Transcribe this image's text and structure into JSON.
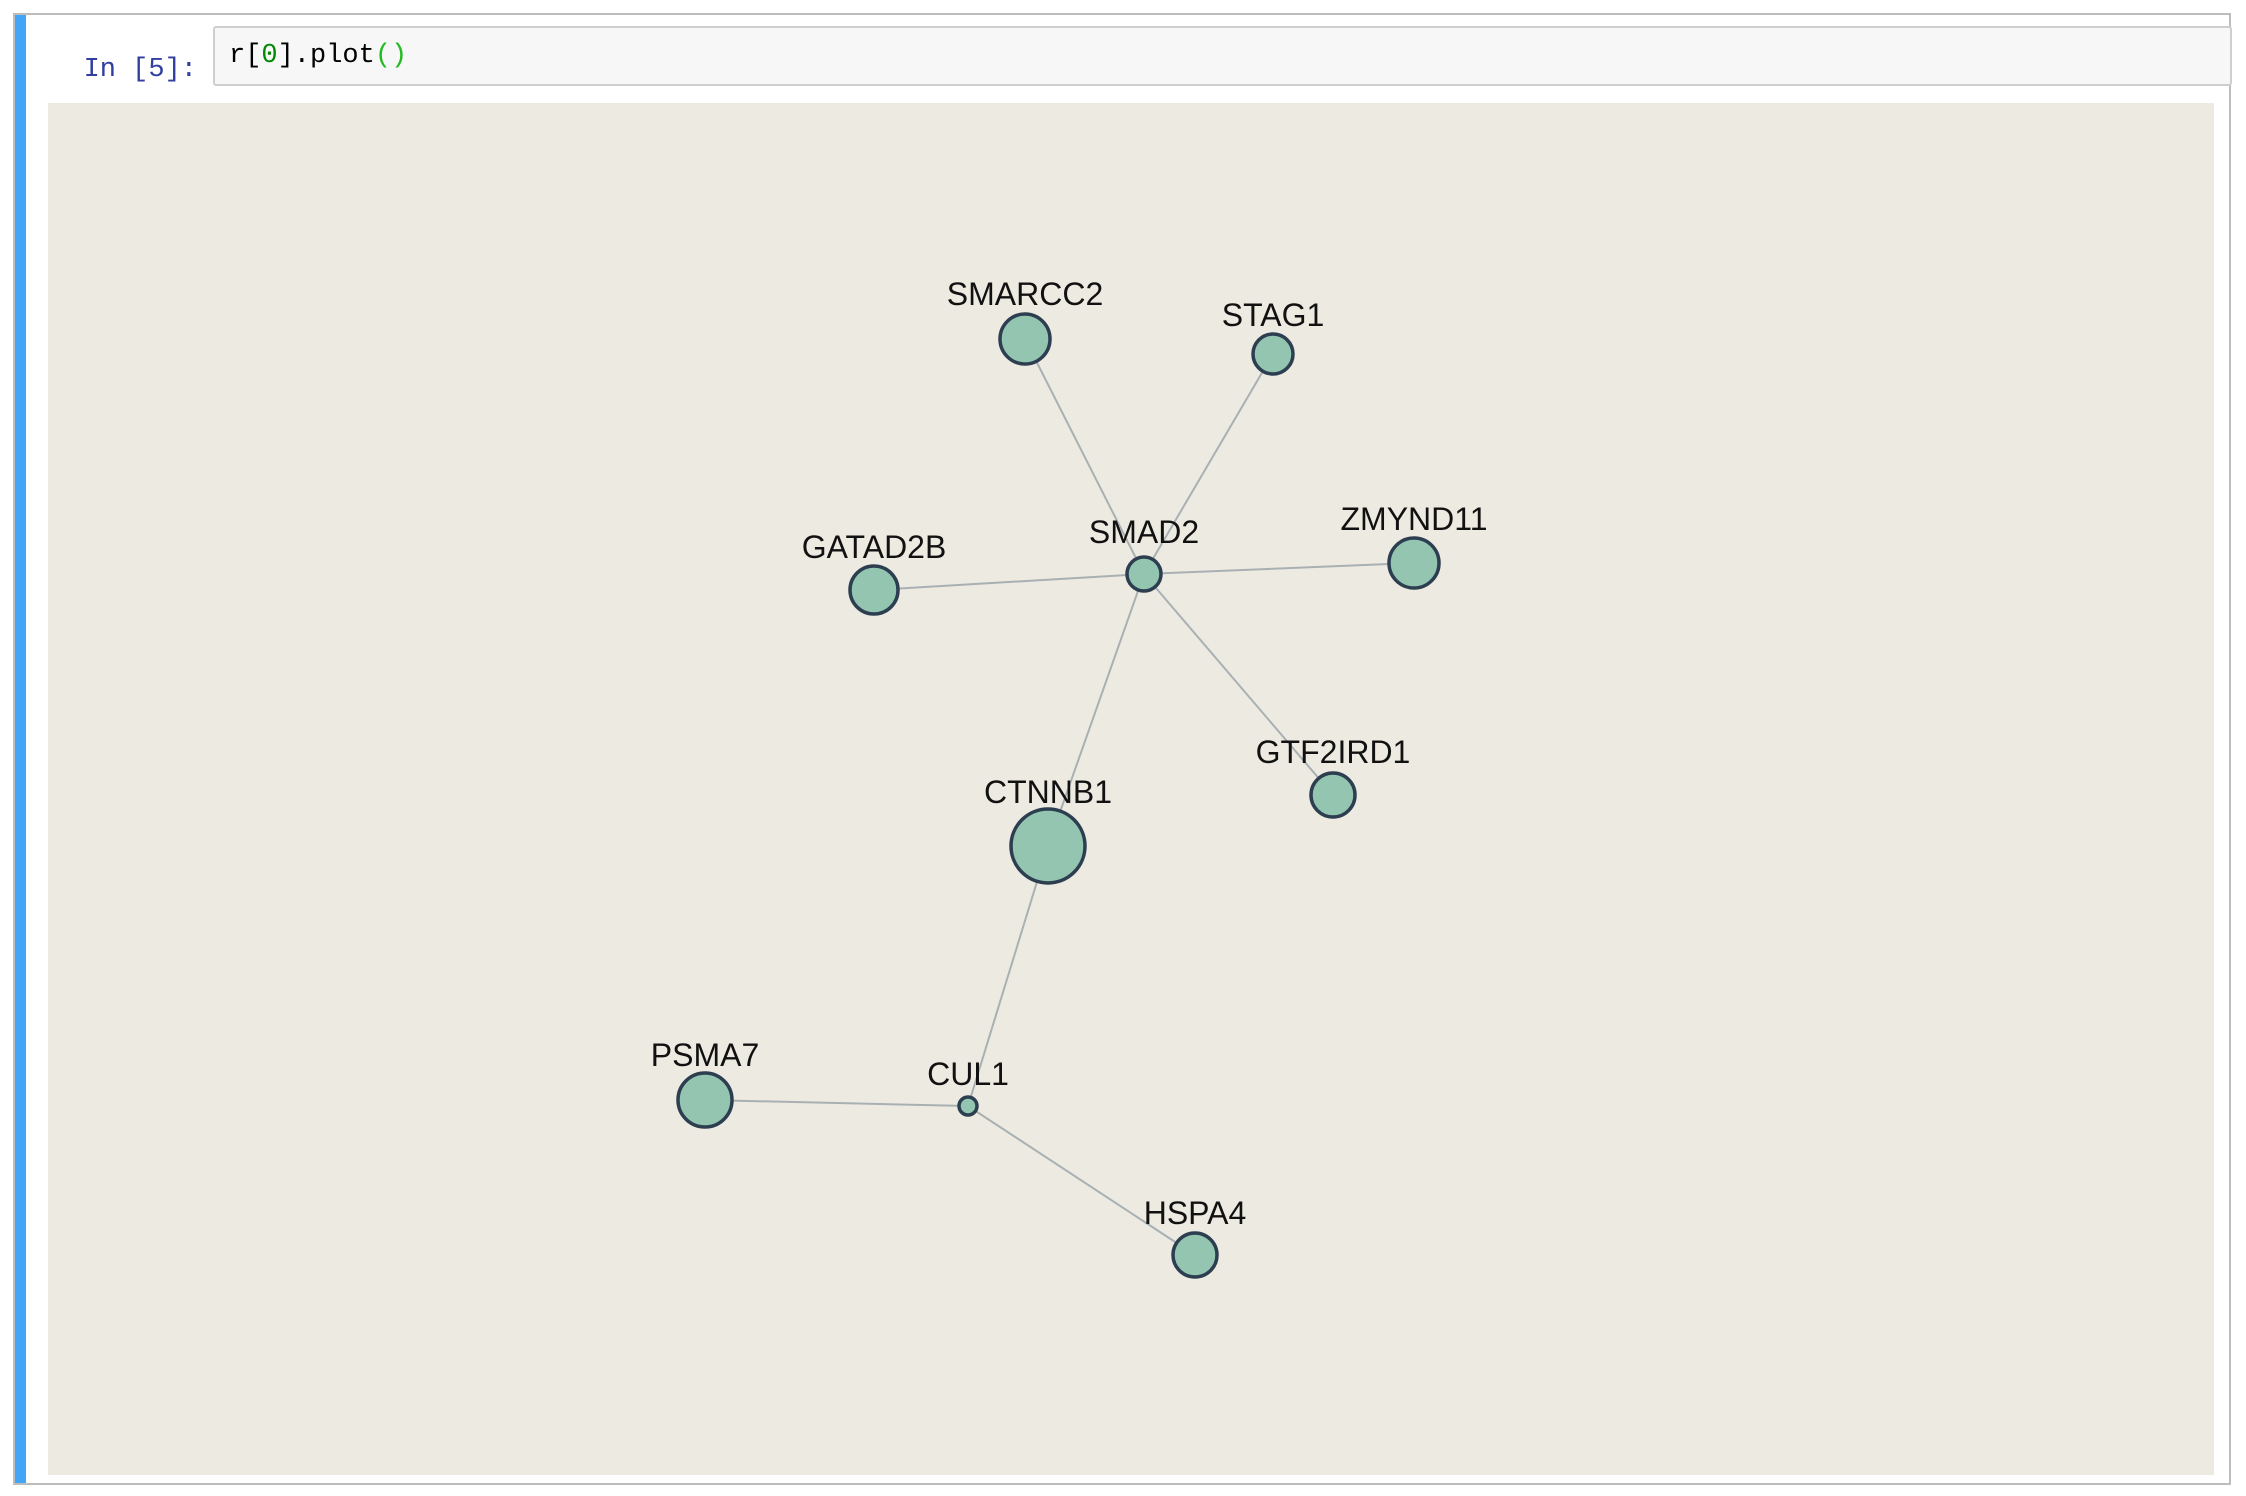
{
  "cell": {
    "prompt": "In [5]:",
    "code": {
      "before_num": "r[",
      "num": "0",
      "after_num": "].plot",
      "paren": "()"
    }
  },
  "colors": {
    "cell_selected_bar": "#42a5f5",
    "prompt": "#303f9f",
    "canvas_background": "#edebe1",
    "node_fill": "#93c5b0",
    "node_stroke": "#2c3e50",
    "edge": "#a9b0b3"
  },
  "graph": {
    "nodes": [
      {
        "id": "SMARCC2",
        "label": "SMARCC2"
      },
      {
        "id": "STAG1",
        "label": "STAG1"
      },
      {
        "id": "GATAD2B",
        "label": "GATAD2B"
      },
      {
        "id": "SMAD2",
        "label": "SMAD2"
      },
      {
        "id": "ZMYND11",
        "label": "ZMYND11"
      },
      {
        "id": "GTF2IRD1",
        "label": "GTF2IRD1"
      },
      {
        "id": "CTNNB1",
        "label": "CTNNB1"
      },
      {
        "id": "PSMA7",
        "label": "PSMA7"
      },
      {
        "id": "CUL1",
        "label": "CUL1"
      },
      {
        "id": "HSPA4",
        "label": "HSPA4"
      }
    ],
    "edges": [
      {
        "source": "SMAD2",
        "target": "SMARCC2"
      },
      {
        "source": "SMAD2",
        "target": "STAG1"
      },
      {
        "source": "SMAD2",
        "target": "GATAD2B"
      },
      {
        "source": "SMAD2",
        "target": "ZMYND11"
      },
      {
        "source": "SMAD2",
        "target": "GTF2IRD1"
      },
      {
        "source": "SMAD2",
        "target": "CTNNB1"
      },
      {
        "source": "CTNNB1",
        "target": "CUL1"
      },
      {
        "source": "CUL1",
        "target": "PSMA7"
      },
      {
        "source": "CUL1",
        "target": "HSPA4"
      }
    ]
  }
}
